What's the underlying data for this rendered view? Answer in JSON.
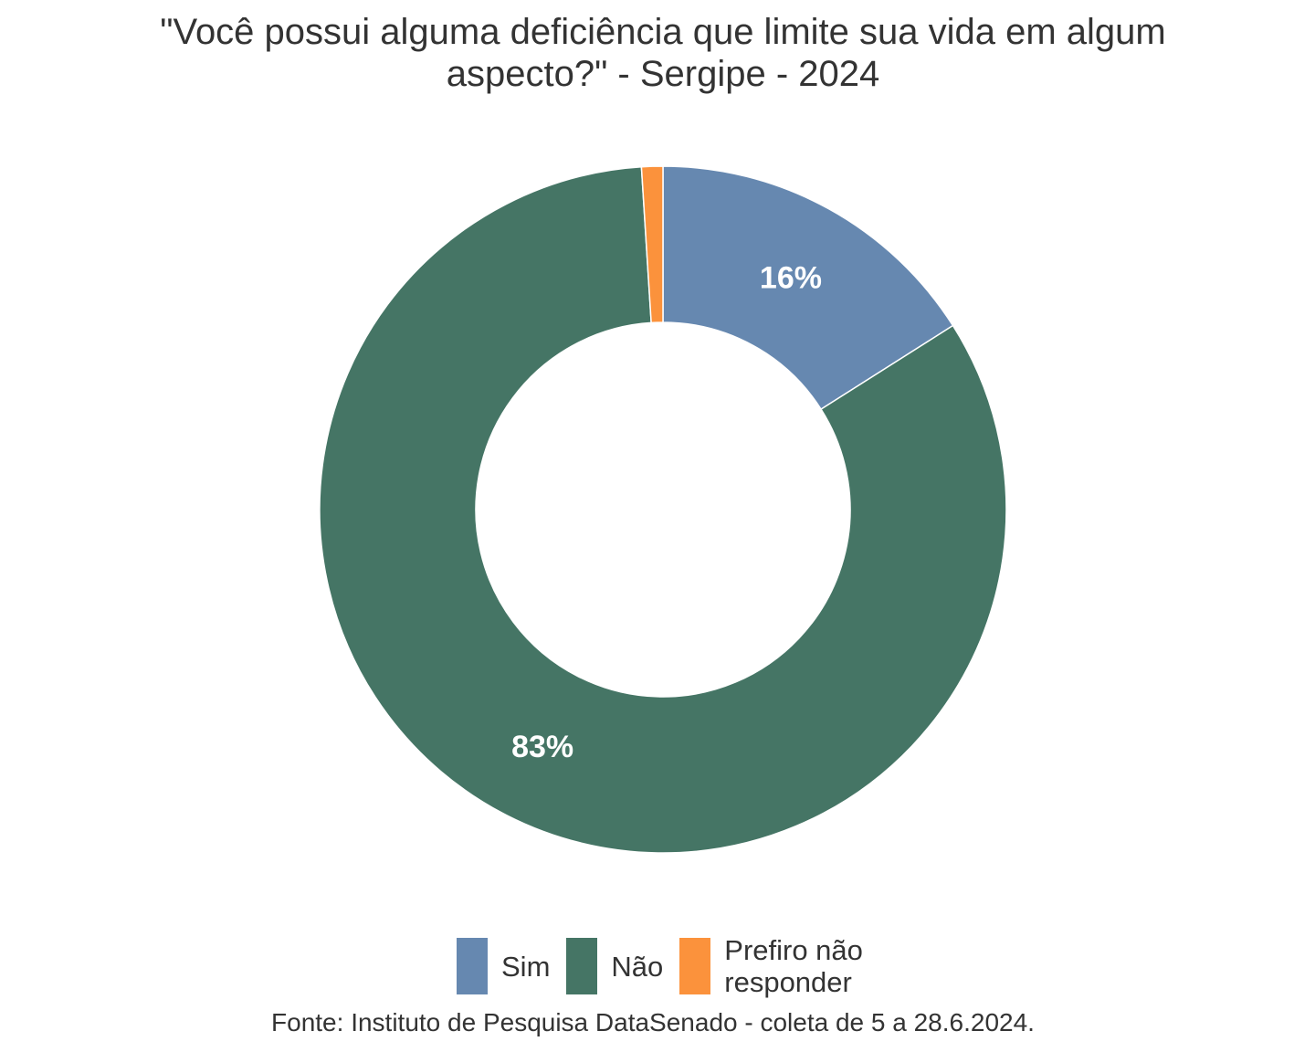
{
  "title_lines": [
    "\"Você possui alguma deficiência que limite sua vida em algum",
    "aspecto?\" - Sergipe - 2024"
  ],
  "caption": "Fonte: Instituto de Pesquisa DataSenado - coleta de 5 a 28.6.2024.",
  "legend": [
    {
      "label": "Sim",
      "color": "#6688b0"
    },
    {
      "label": "Não",
      "color": "#457565"
    },
    {
      "label": "Prefiro não responder",
      "color": "#fb923c"
    }
  ],
  "chart_data": {
    "type": "pie",
    "variant": "donut",
    "title": "\"Você possui alguma deficiência que limite sua vida em algum aspecto?\" - Sergipe - 2024",
    "categories": [
      "Sim",
      "Não",
      "Prefiro não responder"
    ],
    "values": [
      16,
      83,
      1
    ],
    "data_labels": [
      "16%",
      "83%",
      ""
    ],
    "colors": [
      "#6688b0",
      "#457565",
      "#fb923c"
    ],
    "legend_position": "bottom",
    "start": "top",
    "direction": "clockwise"
  }
}
